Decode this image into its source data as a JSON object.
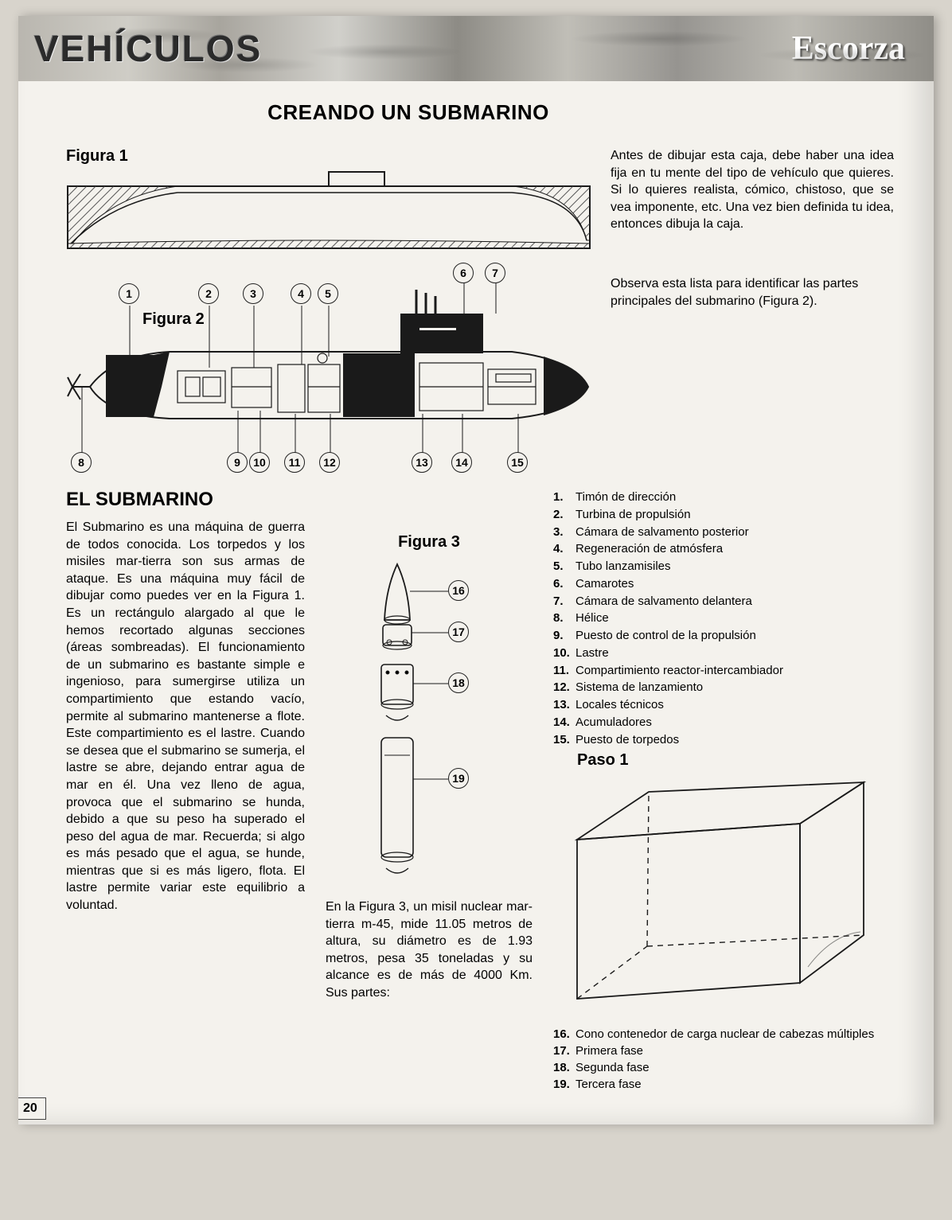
{
  "header": {
    "left": "VEHÍCULOS",
    "right": "Escorza"
  },
  "title": "CREANDO UN SUBMARINO",
  "figure1": {
    "label": "Figura 1"
  },
  "intro": "Antes de dibujar esta caja, debe haber una idea fija en tu mente del tipo de vehículo que quieres. Si lo quieres realista, cómico, chistoso, que se vea imponente, etc. Una vez bien definida tu idea, entonces dibuja la caja.",
  "figure2": {
    "label": "Figura 2",
    "caption": "Observa esta lista para identificar las partes principales del submarino (Figura 2).",
    "top_callouts": [
      "1",
      "2",
      "3",
      "4",
      "5",
      "6",
      "7"
    ],
    "bottom_callouts": [
      "8",
      "9",
      "10",
      "11",
      "12",
      "13",
      "14",
      "15"
    ]
  },
  "section": {
    "heading": "EL SUBMARINO",
    "body": "El Submarino es una máquina de guerra de todos conocida. Los torpedos y los misiles mar-tierra son sus armas de ataque. Es una máquina muy fácil de dibujar como puedes ver en la Figura 1. Es un rectángulo alargado al que le hemos recortado algunas secciones (áreas sombreadas). El funcionamiento de un submarino es bastante simple e ingenioso, para sumergirse utiliza un compartimiento que estando vacío, permite al submarino mantenerse a flote. Este compartimiento es el lastre. Cuando se desea que el submarino se sumerja, el lastre se abre, dejando entrar agua de mar en él. Una vez lleno de agua, provoca que el submarino se hunda, debido a que su peso ha superado el peso del agua de mar. Recuerda; si algo es más pesado que el agua, se hunde, mientras que si es más ligero, flota. El lastre permite variar este equilibrio a voluntad."
  },
  "figure3": {
    "label": "Figura 3",
    "callouts": [
      "16",
      "17",
      "18",
      "19"
    ],
    "caption": "En la Figura 3, un misil nuclear mar-tierra m-45, mide 11.05 metros de altura, su diámetro es de 1.93 metros, pesa 35 toneladas y su alcance es de más de 4000 Km. Sus partes:"
  },
  "parts_list": [
    {
      "n": "1.",
      "t": "Timón de dirección"
    },
    {
      "n": "2.",
      "t": "Turbina de propulsión"
    },
    {
      "n": "3.",
      "t": "Cámara de salvamento posterior"
    },
    {
      "n": "4.",
      "t": "Regeneración de atmósfera"
    },
    {
      "n": "5.",
      "t": "Tubo lanzamisiles"
    },
    {
      "n": "6.",
      "t": "Camarotes"
    },
    {
      "n": "7.",
      "t": "Cámara de salvamento delantera"
    },
    {
      "n": "8.",
      "t": "Hélice"
    },
    {
      "n": "9.",
      "t": "Puesto de control de la propulsión"
    },
    {
      "n": "10.",
      "t": "Lastre"
    },
    {
      "n": "11.",
      "t": "Compartimiento reactor-intercambiador"
    },
    {
      "n": "12.",
      "t": "Sistema de lanzamiento"
    },
    {
      "n": "13.",
      "t": "Locales técnicos"
    },
    {
      "n": "14.",
      "t": "Acumuladores"
    },
    {
      "n": "15.",
      "t": "Puesto de torpedos"
    }
  ],
  "paso1": {
    "label": "Paso 1"
  },
  "missile_parts": [
    {
      "n": "16.",
      "t": "Cono contenedor de carga nuclear de cabezas múltiples"
    },
    {
      "n": "17.",
      "t": "Primera fase"
    },
    {
      "n": "18.",
      "t": "Segunda fase"
    },
    {
      "n": "19.",
      "t": "Tercera fase"
    }
  ],
  "page_number": "20",
  "colors": {
    "ink": "#1a1a1a",
    "paper": "#f4f2ed",
    "hatch": "#555"
  }
}
